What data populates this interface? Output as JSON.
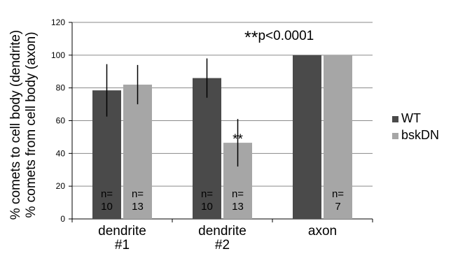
{
  "chart_data": {
    "type": "bar",
    "categories": [
      [
        "dendrite",
        "#1"
      ],
      [
        "dendrite",
        "#2"
      ],
      [
        "axon"
      ]
    ],
    "ylabel": [
      "% comets to cell body (dendrite)",
      "% comets from cell body (axon)"
    ],
    "ylim": [
      0,
      120
    ],
    "yticks": [
      0,
      20,
      40,
      60,
      80,
      100,
      120
    ],
    "grid": true,
    "legend_position": "right",
    "series": [
      {
        "name": "WT",
        "color": "#4a4a4a",
        "values": [
          78.5,
          86,
          100
        ],
        "errors": [
          16,
          12,
          0
        ],
        "n_labels": [
          [
            "n=",
            "10"
          ],
          [
            "n=",
            "10"
          ],
          null
        ]
      },
      {
        "name": "bskDN",
        "color": "#a6a6a6",
        "values": [
          82,
          46.5,
          100
        ],
        "errors": [
          12,
          14.5,
          0
        ],
        "n_labels": [
          [
            "n=",
            "13"
          ],
          [
            "n=",
            "13"
          ],
          [
            "n=",
            "7"
          ]
        ]
      }
    ],
    "annotations": [
      {
        "text": "**",
        "category_index": 1,
        "series_index": 1
      },
      {
        "text": "**p<0.0001",
        "position": "top-right"
      }
    ]
  }
}
